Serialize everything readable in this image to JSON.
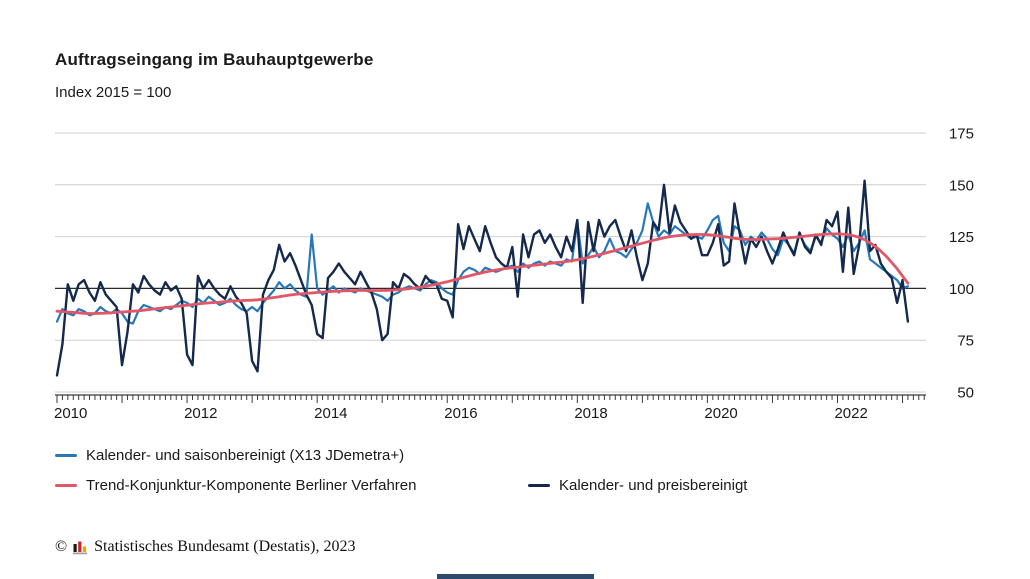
{
  "header": {
    "title": "Auftragseingang im Bauhauptgewerbe",
    "subtitle": "Index 2015 = 100"
  },
  "chart_data": {
    "type": "line",
    "title": "Auftragseingang im Bauhauptgewerbe",
    "subtitle": "Index 2015 = 100",
    "frequency": "monthly",
    "x_start": "2010-01",
    "x_end": "2023-02",
    "x_tick_years_labeled": [
      2010,
      2012,
      2014,
      2016,
      2018,
      2020,
      2022
    ],
    "ylim": [
      50,
      175
    ],
    "yticks": [
      50,
      75,
      100,
      125,
      150,
      175
    ],
    "baseline": 100,
    "grid": true,
    "legend_position": "bottom",
    "series": [
      {
        "name": "Kalender- und saisonbereinigt (X13 JDemetra+)",
        "color": "#2878b8",
        "values": [
          84,
          90,
          88,
          87,
          90,
          89,
          87,
          88,
          91,
          89,
          88,
          90,
          88,
          84,
          83,
          89,
          92,
          91,
          90,
          89,
          91,
          90,
          92,
          94,
          93,
          91,
          95,
          93,
          96,
          94,
          92,
          93,
          95,
          92,
          90,
          89,
          91,
          89,
          93,
          96,
          99,
          103,
          100,
          102,
          99,
          97,
          96,
          126,
          100,
          97,
          99,
          101,
          98,
          100,
          99,
          98,
          100,
          99,
          98,
          97,
          96,
          94,
          97,
          98,
          100,
          101,
          100,
          99,
          102,
          104,
          103,
          100,
          98,
          97,
          104,
          108,
          110,
          109,
          107,
          110,
          109,
          108,
          109,
          110,
          111,
          108,
          112,
          110,
          112,
          113,
          111,
          113,
          112,
          111,
          114,
          113,
          132,
          112,
          116,
          120,
          115,
          118,
          124,
          118,
          117,
          115,
          119,
          122,
          128,
          141,
          132,
          125,
          128,
          126,
          130,
          128,
          126,
          124,
          125,
          124,
          128,
          133,
          135,
          122,
          118,
          130,
          128,
          121,
          125,
          123,
          127,
          124,
          119,
          116,
          124,
          121,
          117,
          126,
          121,
          118,
          125,
          122,
          129,
          126,
          124,
          120,
          126,
          118,
          122,
          128,
          114,
          112,
          110,
          108,
          106,
          104,
          100,
          101
        ]
      },
      {
        "name": "Trend-Konjunktur-Komponente Berliner Verfahren",
        "color": "#e25768",
        "values": [
          89,
          88.8,
          88.6,
          88.4,
          88.2,
          88,
          87.9,
          87.9,
          88,
          88.1,
          88.2,
          88.4,
          88.6,
          88.8,
          89,
          89.2,
          89.5,
          89.8,
          90.1,
          90.4,
          90.7,
          91,
          91.3,
          91.6,
          91.9,
          92.2,
          92.5,
          92.8,
          93,
          93.2,
          93.4,
          93.6,
          93.8,
          94,
          94.1,
          94.2,
          94.3,
          94.5,
          94.8,
          95.2,
          95.6,
          96,
          96.4,
          96.8,
          97.1,
          97.4,
          97.6,
          97.8,
          98,
          98.2,
          98.4,
          98.6,
          98.7,
          98.8,
          98.9,
          99,
          99,
          99,
          99,
          99,
          99,
          99.1,
          99.2,
          99.4,
          99.6,
          99.9,
          100.2,
          100.6,
          101,
          101.5,
          102,
          102.6,
          103.2,
          103.9,
          104.6,
          105.3,
          106,
          106.7,
          107.3,
          107.9,
          108.4,
          108.9,
          109.3,
          109.7,
          110,
          110.3,
          110.6,
          110.9,
          111.2,
          111.5,
          111.8,
          112.1,
          112.4,
          112.7,
          113,
          113.4,
          113.8,
          114.3,
          114.9,
          115.5,
          116.2,
          116.9,
          117.6,
          118.3,
          119,
          119.7,
          120.4,
          121.1,
          121.8,
          122.5,
          123.2,
          123.8,
          124.4,
          124.9,
          125.3,
          125.6,
          125.8,
          125.9,
          126,
          126,
          125.9,
          125.7,
          125.4,
          125,
          124.6,
          124.2,
          123.9,
          123.7,
          123.6,
          123.6,
          123.7,
          123.8,
          123.9,
          124,
          124.2,
          124.4,
          124.6,
          124.9,
          125.2,
          125.5,
          125.8,
          126,
          126.2,
          126.3,
          126.3,
          126.2,
          125.9,
          125.4,
          124.6,
          123.5,
          122,
          120.2,
          118,
          115.5,
          112.5,
          109.5,
          106,
          102.5
        ]
      },
      {
        "name": "Kalender- und preisbereinigt",
        "color": "#14294b",
        "values": [
          58,
          73,
          102,
          94,
          102,
          104,
          98,
          94,
          103,
          97,
          94,
          91,
          63,
          79,
          102,
          98,
          106,
          102,
          99,
          97,
          103,
          99,
          101,
          95,
          68,
          63,
          106,
          100,
          104,
          100,
          97,
          95,
          101,
          96,
          93,
          88,
          65,
          60,
          97,
          104,
          109,
          121,
          113,
          117,
          111,
          104,
          97,
          92,
          78,
          76,
          105,
          108,
          112,
          108,
          105,
          102,
          108,
          103,
          98,
          90,
          75,
          78,
          103,
          100,
          107,
          105,
          102,
          100,
          106,
          103,
          102,
          95,
          94,
          86,
          131,
          119,
          130,
          124,
          118,
          130,
          122,
          115,
          112,
          110,
          120,
          96,
          126,
          115,
          126,
          128,
          122,
          126,
          120,
          115,
          125,
          118,
          133,
          93,
          132,
          118,
          133,
          125,
          130,
          133,
          125,
          118,
          128,
          115,
          104,
          112,
          132,
          128,
          150,
          127,
          140,
          132,
          128,
          124,
          126,
          116,
          116,
          122,
          131,
          111,
          113,
          141,
          126,
          112,
          124,
          120,
          125,
          118,
          112,
          119,
          127,
          121,
          116,
          127,
          120,
          117,
          126,
          121,
          133,
          130,
          137,
          108,
          139,
          107,
          121,
          152,
          118,
          121,
          112,
          108,
          105,
          93,
          104,
          84
        ]
      }
    ]
  },
  "footer": {
    "copyright": "©",
    "source": "Statistisches Bundesamt (Destatis), 2023"
  },
  "colors": {
    "grid": "#cfcfcf",
    "baseline": "#2b2b2b",
    "axis": "#3a3a3a",
    "logo_black": "#1a1a1a",
    "logo_red": "#cc2222",
    "logo_gold": "#e8a400",
    "bottom_bar": "#2c4a6e"
  }
}
